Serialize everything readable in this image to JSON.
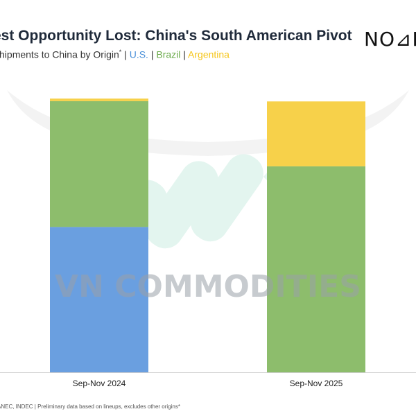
{
  "header": {
    "title": "est Opportunity Lost: China's South American Pivot",
    "subtitle_prefix": "n Shipments to China by Origin",
    "subtitle_asterisk": "*",
    "legend": [
      {
        "label": "U.S.",
        "color": "#4a90d9"
      },
      {
        "label": "Brazil",
        "color": "#6aaa4a"
      },
      {
        "label": "Argentina",
        "color": "#f5c518"
      }
    ],
    "separator": "|"
  },
  "logo": {
    "text": "NO⊿B"
  },
  "watermark": {
    "text": "VN COMMODITIES"
  },
  "footnote": "ANEC, INDEC | Preliminary data based on lineups, excludes other origins*",
  "colors": {
    "us": "#6a9fe0",
    "brazil": "#8dbd6c",
    "argentina": "#f7d14a",
    "axis": "#cfcfcf",
    "tick_text": "#222222"
  },
  "chart_data": {
    "type": "bar",
    "stacked": true,
    "categories": [
      "Sep-Nov 2024",
      "Sep-Nov 2025"
    ],
    "series": [
      {
        "name": "U.S.",
        "values": [
          51.5,
          0
        ]
      },
      {
        "name": "Brazil",
        "values": [
          44.6,
          73.0
        ]
      },
      {
        "name": "Argentina",
        "values": [
          0.9,
          23.0
        ]
      }
    ],
    "ylim": [
      0,
      100
    ],
    "grid": false,
    "legend_placement": "top, in subtitle"
  }
}
